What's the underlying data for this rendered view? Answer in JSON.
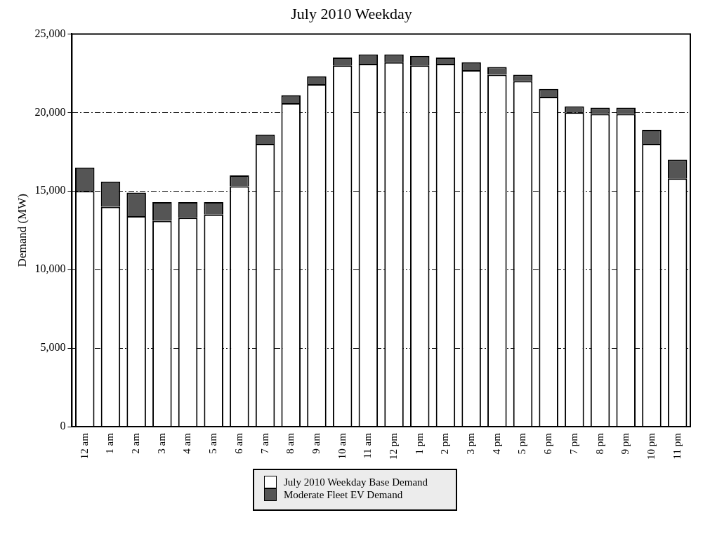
{
  "chart_data": {
    "type": "bar",
    "title": "July 2010 Weekday",
    "ylabel": "Demand (MW)",
    "categories": [
      "12 am",
      "1 am",
      "2 am",
      "3 am",
      "4 am",
      "5 am",
      "6 am",
      "7 am",
      "8 am",
      "9 am",
      "10 am",
      "11 am",
      "12 pm",
      "1 pm",
      "2 pm",
      "3 pm",
      "4 pm",
      "5 pm",
      "6 pm",
      "7 pm",
      "8 pm",
      "9 pm",
      "10 pm",
      "11 pm"
    ],
    "stacked": true,
    "series": [
      {
        "name": "July 2010 Weekday Base Demand",
        "color": "#ffffff",
        "values": [
          15000,
          14000,
          13400,
          13100,
          13300,
          13500,
          15300,
          18000,
          20600,
          21800,
          23000,
          23100,
          23200,
          23000,
          23100,
          22700,
          22400,
          22000,
          21000,
          20000,
          19900,
          19900,
          18000,
          15800
        ]
      },
      {
        "name": "Moderate Fleet EV Demand",
        "color": "#555555",
        "values": [
          1500,
          1600,
          1500,
          1200,
          1000,
          800,
          700,
          600,
          500,
          500,
          500,
          600,
          500,
          600,
          400,
          500,
          500,
          400,
          500,
          400,
          400,
          400,
          900,
          1200
        ]
      }
    ],
    "ylim": [
      0,
      25000
    ],
    "yticks": [
      0,
      {
        "value": 5000,
        "label": "5,000"
      },
      {
        "value": 10000,
        "label": "10,000"
      },
      {
        "value": 15000,
        "label": "15,000"
      },
      {
        "value": 20000,
        "label": "20,000"
      },
      {
        "value": 25000,
        "label": "25,000"
      }
    ],
    "grid": "y",
    "legend": "bottom"
  }
}
